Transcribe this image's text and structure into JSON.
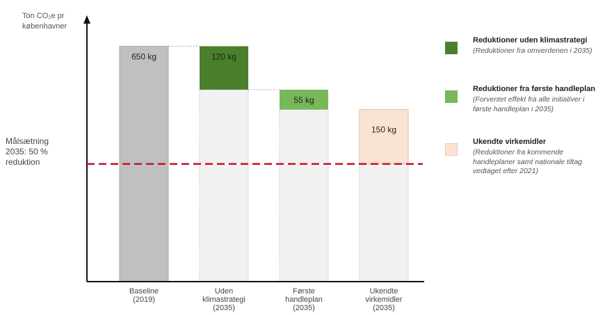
{
  "chart_data": {
    "type": "bar",
    "subtype": "waterfall",
    "ylabel_line1": "Ton CO₂e pr",
    "ylabel_line2": "københavner",
    "categories": [
      {
        "line1": "Baseline",
        "line2": "(2019)",
        "line3": ""
      },
      {
        "line1": "Uden",
        "line2": "klimastrategi",
        "line3": "(2035)"
      },
      {
        "line1": "Første",
        "line2": "handleplan",
        "line3": "(2035)"
      },
      {
        "line1": "Ukendte",
        "line2": "virkemidler",
        "line3": "(2035)"
      }
    ],
    "baseline": {
      "value": 650,
      "label": "650 kg",
      "color": "#c0c0c0"
    },
    "segments": [
      {
        "category_index": 1,
        "start": 650,
        "end": 530,
        "label": "120 kg",
        "series": "Reduktioner uden klimastrategi",
        "color": "#4a7f2c"
      },
      {
        "category_index": 2,
        "start": 530,
        "end": 475,
        "label": "55 kg",
        "series": "Reduktioner fra første handleplan",
        "color": "#78b75a"
      },
      {
        "category_index": 3,
        "start": 475,
        "end": 325,
        "label": "150 kg",
        "series": "Ukendte virkemidler",
        "color": "#fbe3d4"
      }
    ],
    "residual_color": "#f1f1f1",
    "target": {
      "value": 325,
      "label_line1": "Målsætning",
      "label_line2": "2035: 50 %",
      "label_line3": "reduktion",
      "color": "#c8102e"
    },
    "ylim": [
      0,
      720
    ],
    "legend_placement": "right",
    "legend": [
      {
        "title": "Reduktioner uden klimastrategi",
        "desc": "(Reduktioner fra omverdenen i 2035)",
        "color": "#4a7f2c"
      },
      {
        "title": "Reduktioner fra første handleplan",
        "desc": "(Forventet effekt fra alle initiativer i første handleplan i 2035)",
        "color": "#78b75a"
      },
      {
        "title": "Ukendte virkemidler",
        "desc": "(Reduktioner fra kommende handleplaner samt nationale tiltag vedtaget efter 2021)",
        "color": "#fbe3d4"
      }
    ]
  }
}
